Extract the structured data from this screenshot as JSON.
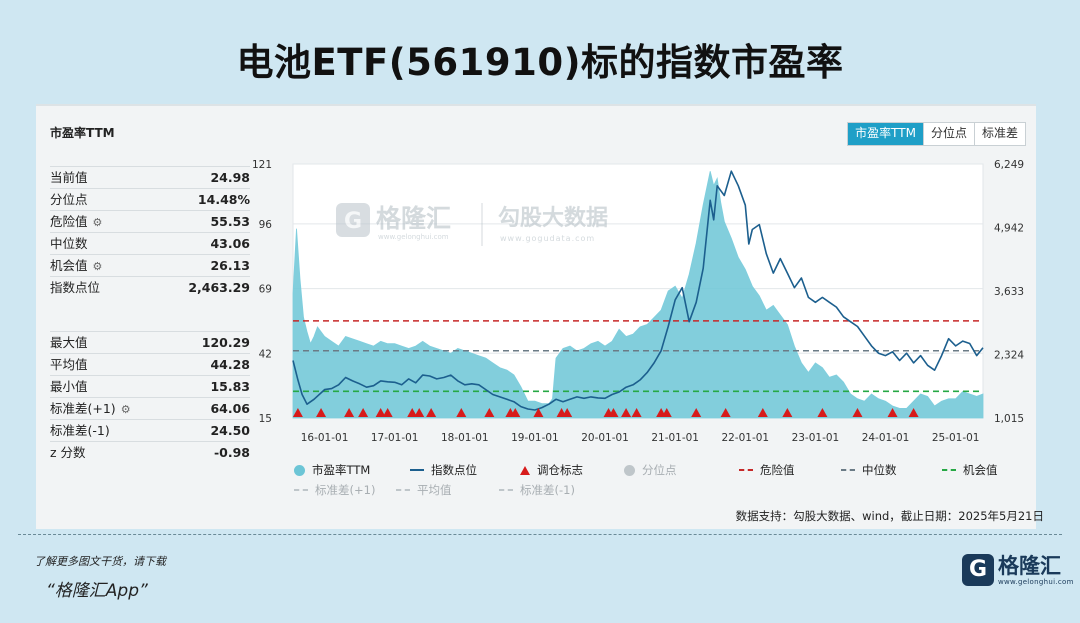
{
  "page": {
    "title": "电池ETF(561910)标的指数市盈率"
  },
  "panel": {
    "title": "市盈率TTM",
    "stats_top": [
      {
        "label": "当前值",
        "value": "24.98",
        "gear": false
      },
      {
        "label": "分位点",
        "value": "14.48%",
        "gear": false
      },
      {
        "label": "危险值",
        "value": "55.53",
        "gear": true
      },
      {
        "label": "中位数",
        "value": "43.06",
        "gear": false
      },
      {
        "label": "机会值",
        "value": "26.13",
        "gear": true
      },
      {
        "label": "指数点位",
        "value": "2,463.29",
        "gear": false
      }
    ],
    "stats_bottom": [
      {
        "label": "最大值",
        "value": "120.29",
        "gear": false
      },
      {
        "label": "平均值",
        "value": "44.28",
        "gear": false
      },
      {
        "label": "最小值",
        "value": "15.83",
        "gear": false
      },
      {
        "label": "标准差(+1)",
        "value": "64.06",
        "gear": true
      },
      {
        "label": "标准差(-1)",
        "value": "24.50",
        "gear": false
      },
      {
        "label": "z 分数",
        "value": "-0.98",
        "gear": false
      }
    ]
  },
  "tabs": [
    {
      "label": "市盈率TTM",
      "active": true
    },
    {
      "label": "分位点",
      "active": false
    },
    {
      "label": "标准差",
      "active": false
    }
  ],
  "watermark": {
    "brand": "格隆汇",
    "brand_url": "www.gelonghui.com",
    "data_name": "勾股大数据",
    "data_url": "www.gogudata.com"
  },
  "legend": [
    {
      "label": "市盈率TTM",
      "kind": "dot",
      "color": "#6cc5d6",
      "muted": false
    },
    {
      "label": "指数点位",
      "kind": "line",
      "color": "#1c5f8e",
      "muted": false
    },
    {
      "label": "调仓标志",
      "kind": "triangle",
      "color": "#d71b1b",
      "muted": false
    },
    {
      "label": "分位点",
      "kind": "dot",
      "color": "#bfc6ca",
      "muted": true
    },
    {
      "label": "危险值",
      "kind": "dash",
      "color": "#c62828",
      "muted": false
    },
    {
      "label": "中位数",
      "kind": "dash",
      "color": "#6b7b86",
      "muted": false
    },
    {
      "label": "机会值",
      "kind": "dash",
      "color": "#27a845",
      "muted": false
    },
    {
      "label": "标准差(+1)",
      "kind": "dash",
      "color": "#bfc6ca",
      "muted": true
    },
    {
      "label": "平均值",
      "kind": "dash",
      "color": "#bfc6ca",
      "muted": true
    },
    {
      "label": "标准差(-1)",
      "kind": "dash",
      "color": "#bfc6ca",
      "muted": true
    }
  ],
  "source": "数据支持：勾股大数据、wind，截止日期：2025年5月21日",
  "footer": {
    "hint": "了解更多图文干货，请下载",
    "app": "“格隆汇App”",
    "logo_name": "格隆汇",
    "logo_url": "www.gelonghui.com"
  },
  "chart_data": {
    "type": "area",
    "x_axis": {
      "ticks": [
        "16-01-01",
        "17-01-01",
        "18-01-01",
        "19-01-01",
        "20-01-01",
        "21-01-01",
        "22-01-01",
        "23-01-01",
        "24-01-01",
        "25-01-01"
      ],
      "range": [
        2015.55,
        2025.39
      ]
    },
    "y_left": {
      "ticks": [
        15,
        42,
        69,
        96,
        121
      ],
      "range": [
        15,
        121
      ]
    },
    "y_right": {
      "tick_labels": [
        "1,015",
        "2,324",
        "3,633",
        "4,942",
        "6,249"
      ],
      "range": [
        1015,
        6249
      ]
    },
    "reference_lines": {
      "danger": 55.53,
      "median": 43.06,
      "opportunity": 26.13
    },
    "series": [
      {
        "name": "市盈率TTM",
        "axis": "left",
        "color": "#6cc5d6",
        "x": [
          2015.55,
          2015.6,
          2015.65,
          2015.7,
          2015.75,
          2015.8,
          2015.85,
          2015.9,
          2016.0,
          2016.1,
          2016.2,
          2016.3,
          2016.4,
          2016.5,
          2016.6,
          2016.7,
          2016.8,
          2016.9,
          2017.0,
          2017.1,
          2017.2,
          2017.3,
          2017.4,
          2017.5,
          2017.6,
          2017.7,
          2017.8,
          2017.9,
          2018.0,
          2018.1,
          2018.2,
          2018.3,
          2018.4,
          2018.5,
          2018.6,
          2018.7,
          2018.8,
          2018.9,
          2019.0,
          2019.1,
          2019.2,
          2019.25,
          2019.3,
          2019.4,
          2019.5,
          2019.6,
          2019.7,
          2019.8,
          2019.9,
          2020.0,
          2020.1,
          2020.2,
          2020.3,
          2020.4,
          2020.5,
          2020.6,
          2020.7,
          2020.8,
          2020.9,
          2021.0,
          2021.1,
          2021.2,
          2021.3,
          2021.4,
          2021.5,
          2021.55,
          2021.6,
          2021.65,
          2021.7,
          2021.8,
          2021.9,
          2022.0,
          2022.1,
          2022.2,
          2022.3,
          2022.4,
          2022.5,
          2022.6,
          2022.7,
          2022.8,
          2022.9,
          2023.0,
          2023.1,
          2023.2,
          2023.3,
          2023.4,
          2023.5,
          2023.6,
          2023.7,
          2023.8,
          2023.9,
          2024.0,
          2024.1,
          2024.2,
          2024.3,
          2024.4,
          2024.5,
          2024.6,
          2024.7,
          2024.8,
          2024.9,
          2025.0,
          2025.1,
          2025.2,
          2025.3,
          2025.39
        ],
        "values": [
          67,
          94,
          73,
          57,
          51,
          46,
          49,
          53,
          49,
          47,
          45,
          49,
          48,
          47,
          46,
          45,
          47,
          46,
          46,
          45,
          44,
          45,
          47,
          45,
          44,
          43,
          42,
          44,
          43,
          42,
          41,
          40,
          38,
          36,
          35,
          33,
          28,
          22,
          22,
          21,
          21,
          23,
          40,
          44,
          45,
          43,
          44,
          46,
          47,
          45,
          47,
          52,
          49,
          50,
          53,
          54,
          57,
          60,
          68,
          70,
          65,
          75,
          88,
          104,
          118,
          112,
          115,
          105,
          97,
          90,
          82,
          77,
          70,
          66,
          60,
          62,
          58,
          54,
          45,
          38,
          34,
          38,
          36,
          32,
          33,
          30,
          25,
          23,
          22,
          25,
          23,
          22,
          20,
          19,
          19,
          22,
          25,
          24,
          20,
          22,
          23,
          23,
          26,
          25,
          24,
          25
        ]
      },
      {
        "name": "指数点位",
        "axis": "right",
        "color": "#1c5f8e",
        "x": [
          2015.55,
          2015.62,
          2015.68,
          2015.75,
          2015.85,
          2016.0,
          2016.1,
          2016.2,
          2016.3,
          2016.4,
          2016.5,
          2016.6,
          2016.7,
          2016.8,
          2016.9,
          2017.0,
          2017.1,
          2017.2,
          2017.3,
          2017.4,
          2017.5,
          2017.6,
          2017.7,
          2017.8,
          2017.9,
          2018.0,
          2018.1,
          2018.2,
          2018.3,
          2018.4,
          2018.5,
          2018.6,
          2018.7,
          2018.8,
          2018.9,
          2019.0,
          2019.1,
          2019.2,
          2019.3,
          2019.4,
          2019.5,
          2019.6,
          2019.7,
          2019.8,
          2019.9,
          2020.0,
          2020.1,
          2020.2,
          2020.3,
          2020.4,
          2020.5,
          2020.6,
          2020.7,
          2020.8,
          2020.9,
          2021.0,
          2021.1,
          2021.2,
          2021.3,
          2021.4,
          2021.5,
          2021.55,
          2021.6,
          2021.7,
          2021.8,
          2021.9,
          2022.0,
          2022.05,
          2022.1,
          2022.2,
          2022.3,
          2022.4,
          2022.5,
          2022.6,
          2022.7,
          2022.8,
          2022.9,
          2023.0,
          2023.1,
          2023.2,
          2023.3,
          2023.4,
          2023.5,
          2023.6,
          2023.7,
          2023.8,
          2023.9,
          2024.0,
          2024.1,
          2024.2,
          2024.3,
          2024.4,
          2024.5,
          2024.6,
          2024.7,
          2024.8,
          2024.9,
          2025.0,
          2025.1,
          2025.2,
          2025.3,
          2025.39
        ],
        "values": [
          2200,
          1800,
          1500,
          1300,
          1400,
          1600,
          1620,
          1700,
          1850,
          1780,
          1720,
          1650,
          1680,
          1780,
          1760,
          1750,
          1700,
          1820,
          1740,
          1900,
          1880,
          1820,
          1850,
          1900,
          1780,
          1700,
          1720,
          1700,
          1600,
          1500,
          1450,
          1400,
          1350,
          1250,
          1200,
          1180,
          1230,
          1300,
          1400,
          1350,
          1400,
          1450,
          1420,
          1450,
          1430,
          1420,
          1500,
          1550,
          1650,
          1700,
          1800,
          1950,
          2150,
          2400,
          2900,
          3450,
          3700,
          3000,
          3400,
          4100,
          5500,
          5100,
          5800,
          5600,
          6100,
          5800,
          5400,
          4600,
          4900,
          5000,
          4400,
          4000,
          4300,
          4000,
          3700,
          3900,
          3500,
          3400,
          3500,
          3400,
          3300,
          3100,
          3000,
          2900,
          2700,
          2500,
          2350,
          2300,
          2380,
          2200,
          2350,
          2150,
          2300,
          2100,
          2000,
          2300,
          2650,
          2500,
          2600,
          2550,
          2300,
          2463
        ]
      }
    ],
    "markers": {
      "name": "调仓标志",
      "x": [
        2015.62,
        2015.95,
        2016.35,
        2016.55,
        2016.8,
        2016.9,
        2017.25,
        2017.35,
        2017.52,
        2017.95,
        2018.35,
        2018.65,
        2018.72,
        2019.05,
        2019.38,
        2019.46,
        2020.05,
        2020.12,
        2020.3,
        2020.45,
        2020.8,
        2020.88,
        2021.3,
        2021.72,
        2022.25,
        2022.6,
        2023.1,
        2023.6,
        2024.1,
        2024.4
      ]
    }
  }
}
